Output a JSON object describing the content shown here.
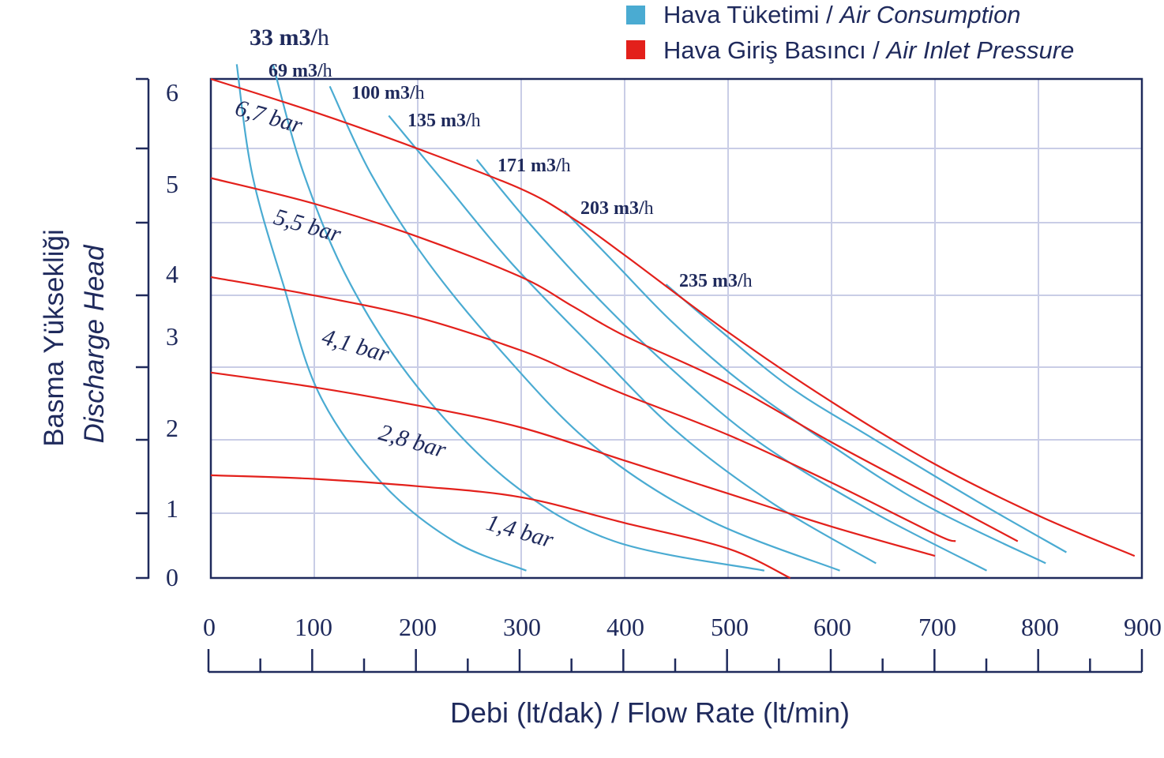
{
  "colors": {
    "air_consumption": "#4aabd2",
    "air_inlet_pressure": "#e3201b",
    "axis": "#1f2a5c",
    "grid": "#c9cde6",
    "text": "#1f2a5c"
  },
  "chart_data": {
    "type": "line",
    "xlabel": "Debi (lt/dak) / Flow Rate (lt/min)",
    "ylabel_tr": "Basma Yüksekliği",
    "ylabel_en": "Discharge Head",
    "xlim": [
      0,
      900
    ],
    "ylim": [
      0,
      6.8
    ],
    "x_ticks": [
      "0",
      "100",
      "200",
      "300",
      "400",
      "500",
      "600",
      "700",
      "800",
      "900"
    ],
    "y_ticks": [
      "0",
      "1",
      "2",
      "3",
      "4",
      "5",
      "6"
    ],
    "grid": true,
    "legend_position": "top-right",
    "legend": [
      {
        "color_key": "air_consumption",
        "label_tr": "Hava Tüketimi / ",
        "label_en": "Air Consumption"
      },
      {
        "color_key": "air_inlet_pressure",
        "label_tr": "Hava Giriş Basıncı / ",
        "label_en": "Air Inlet Pressure"
      }
    ],
    "pressure_series": [
      {
        "name": "6,7 bar",
        "points": [
          [
            0,
            6.8
          ],
          [
            100,
            6.35
          ],
          [
            200,
            5.85
          ],
          [
            300,
            5.3
          ],
          [
            350,
            4.9
          ],
          [
            400,
            4.4
          ],
          [
            500,
            3.35
          ],
          [
            600,
            2.4
          ],
          [
            700,
            1.55
          ],
          [
            800,
            0.85
          ],
          [
            893,
            0.3
          ]
        ]
      },
      {
        "name": "5,5 bar",
        "points": [
          [
            0,
            5.45
          ],
          [
            100,
            5.1
          ],
          [
            200,
            4.65
          ],
          [
            300,
            4.1
          ],
          [
            350,
            3.7
          ],
          [
            400,
            3.3
          ],
          [
            500,
            2.65
          ],
          [
            600,
            1.85
          ],
          [
            700,
            1.1
          ],
          [
            780,
            0.5
          ]
        ]
      },
      {
        "name": "4,1 bar",
        "points": [
          [
            0,
            4.1
          ],
          [
            100,
            3.85
          ],
          [
            200,
            3.55
          ],
          [
            300,
            3.1
          ],
          [
            350,
            2.8
          ],
          [
            400,
            2.5
          ],
          [
            500,
            1.95
          ],
          [
            600,
            1.3
          ],
          [
            700,
            0.6
          ],
          [
            720,
            0.5
          ]
        ]
      },
      {
        "name": "2,8 bar",
        "points": [
          [
            0,
            2.8
          ],
          [
            100,
            2.6
          ],
          [
            200,
            2.35
          ],
          [
            300,
            2.05
          ],
          [
            400,
            1.6
          ],
          [
            500,
            1.15
          ],
          [
            600,
            0.7
          ],
          [
            700,
            0.3
          ]
        ]
      },
      {
        "name": "1,4 bar",
        "points": [
          [
            0,
            1.4
          ],
          [
            100,
            1.35
          ],
          [
            200,
            1.25
          ],
          [
            300,
            1.1
          ],
          [
            400,
            0.75
          ],
          [
            500,
            0.4
          ],
          [
            560,
            0
          ]
        ]
      }
    ],
    "air_series": [
      {
        "name": "33 m3/h",
        "points": [
          [
            25,
            7.0
          ],
          [
            40,
            5.5
          ],
          [
            70,
            4.0
          ],
          [
            105,
            2.5
          ],
          [
            165,
            1.3
          ],
          [
            235,
            0.5
          ],
          [
            305,
            0.1
          ]
        ]
      },
      {
        "name": "69 m3/h",
        "points": [
          [
            60,
            7.0
          ],
          [
            90,
            5.5
          ],
          [
            135,
            4.0
          ],
          [
            200,
            2.6
          ],
          [
            290,
            1.3
          ],
          [
            390,
            0.5
          ],
          [
            535,
            0.1
          ]
        ]
      },
      {
        "name": "100 m3/h",
        "points": [
          [
            115,
            6.7
          ],
          [
            155,
            5.5
          ],
          [
            210,
            4.3
          ],
          [
            280,
            3.1
          ],
          [
            370,
            1.8
          ],
          [
            480,
            0.8
          ],
          [
            608,
            0.1
          ]
        ]
      },
      {
        "name": "135 m3/h",
        "points": [
          [
            172,
            6.3
          ],
          [
            225,
            5.4
          ],
          [
            290,
            4.3
          ],
          [
            365,
            3.2
          ],
          [
            450,
            2.0
          ],
          [
            545,
            1.0
          ],
          [
            643,
            0.2
          ]
        ]
      },
      {
        "name": "171 m3/h",
        "points": [
          [
            257,
            5.7
          ],
          [
            310,
            4.8
          ],
          [
            375,
            3.8
          ],
          [
            445,
            2.85
          ],
          [
            530,
            1.85
          ],
          [
            640,
            0.9
          ],
          [
            750,
            0.1
          ]
        ]
      },
      {
        "name": "203 m3/h",
        "points": [
          [
            342,
            5.0
          ],
          [
            390,
            4.3
          ],
          [
            445,
            3.5
          ],
          [
            510,
            2.7
          ],
          [
            590,
            1.9
          ],
          [
            690,
            1.0
          ],
          [
            807,
            0.2
          ]
        ]
      },
      {
        "name": "235 m3/h",
        "points": [
          [
            440,
            4.0
          ],
          [
            490,
            3.4
          ],
          [
            560,
            2.6
          ],
          [
            640,
            1.9
          ],
          [
            740,
            1.05
          ],
          [
            827,
            0.35
          ]
        ]
      }
    ]
  },
  "labels": {
    "air": [
      {
        "num": "33 m3/",
        "unit": "h"
      },
      {
        "num": "69 m3/",
        "unit": "h"
      },
      {
        "num": "100 m3/",
        "unit": "h"
      },
      {
        "num": "135 m3/",
        "unit": "h"
      },
      {
        "num": "171 m3/",
        "unit": "h"
      },
      {
        "num": "203 m3/",
        "unit": "h"
      },
      {
        "num": "235 m3/",
        "unit": "h"
      }
    ],
    "pressure": [
      "6,7 bar",
      "5,5 bar",
      "4,1 bar",
      "2,8 bar",
      "1,4 bar"
    ]
  }
}
